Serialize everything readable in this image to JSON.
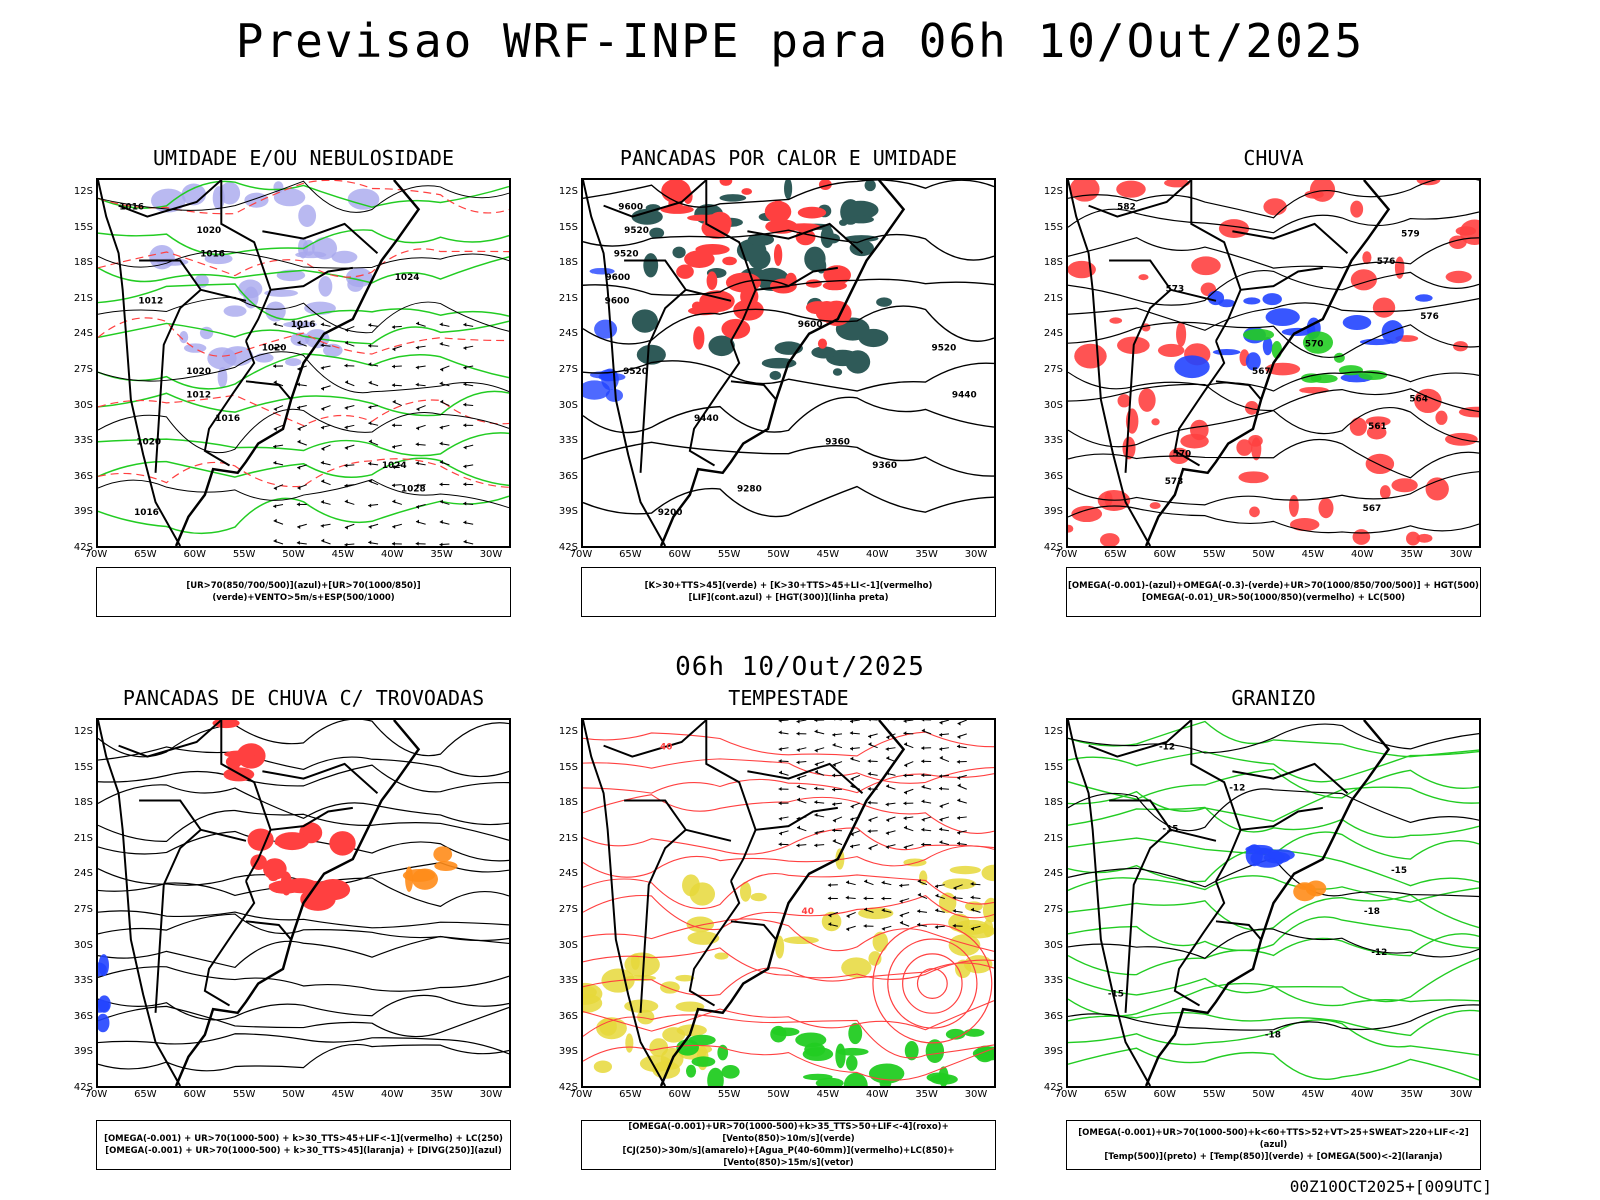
{
  "title": "Previsao WRF-INPE  para 06h 10/Out/2025",
  "mid_title": "06h 10/Out/2025",
  "footer": "00Z10OCT2025+[009UTC]",
  "axes": {
    "lat_ticks": [
      "12S",
      "15S",
      "18S",
      "21S",
      "24S",
      "27S",
      "30S",
      "33S",
      "36S",
      "39S",
      "42S"
    ],
    "lon_ticks": [
      "70W",
      "65W",
      "60W",
      "55W",
      "50W",
      "45W",
      "40W",
      "35W",
      "30W"
    ]
  },
  "colors": {
    "red": "#ff4040",
    "green": "#22cc22",
    "blue": "#2244ff",
    "lavender": "#a8a8ee",
    "darkteal": "#2f5a58",
    "yellow": "#e6d83a",
    "orange": "#ff8c1a"
  },
  "panels": [
    {
      "title": "UMIDADE E/OU NEBULOSIDADE",
      "legend": [
        "[UR>70(850/700/500)](azul)+[UR>70(1000/850)](verde)+VENTO>5m/s+ESP(500/1000)"
      ],
      "contour_labels": [
        "1016",
        "1020",
        "1016",
        "1024",
        "1012",
        "1016",
        "1020",
        "1020",
        "1012",
        "1016",
        "1020",
        "1024",
        "1028",
        "1016"
      ]
    },
    {
      "title": "PANCADAS POR CALOR E UMIDADE",
      "legend": [
        "[K>30+TTS>45](verde) + [K>30+TTS>45+LI<-1](vermelho)",
        "[LIF](cont.azul) + [HGT(300)](linha preta)"
      ],
      "contour_labels": [
        "9600",
        "9520",
        "9520",
        "9600",
        "9600",
        "9600",
        "9520",
        "9520",
        "9440",
        "9440",
        "9360",
        "9360",
        "9280",
        "9200"
      ]
    },
    {
      "title": "CHUVA",
      "legend": [
        "[OMEGA(-0.001)-(azul)+OMEGA(-0.3)-(verde)+UR>70(1000/850/700/500)] + HGT(500)",
        "[OMEGA(-0.01)_UR>50(1000/850)(vermelho) + LC(500)"
      ],
      "contour_labels": [
        "582",
        "579",
        "576",
        "573",
        "576",
        "570",
        "567",
        "564",
        "561",
        "570",
        "573",
        "567"
      ]
    },
    {
      "title": "PANCADAS DE CHUVA C/ TROVOADAS",
      "legend": [
        "[OMEGA(-0.001) + UR>70(1000-500) + k>30_TTS>45+LIF<-1](vermelho) + LC(250)",
        "[OMEGA(-0.001) + UR>70(1000-500) + k>30_TTS>45](laranja) + [DIVG(250)](azul)"
      ],
      "contour_labels": []
    },
    {
      "title": "TEMPESTADE",
      "legend": [
        "[OMEGA(-0.001)+UR>70(1000-500)+k>35_TTS>50+LIF<-4](roxo)+[Vento(850)>10m/s](verde)",
        "[CJ(250)>30m/s](amarelo)+[Agua_P(40-60mm)](vermelho)+LC(850)+[Vento(850)>15m/s](vetor)"
      ],
      "contour_labels": [
        "40",
        "40"
      ]
    },
    {
      "title": "GRANIZO",
      "legend": [
        "[OMEGA(-0.001)+UR>70(1000-500)+k<60+TTS>52+VT>25+SWEAT>220+LIF<-2](azul)",
        "[Temp(500)](preto) + [Temp(850)](verde) + [OMEGA(500)<-2](laranja)"
      ],
      "contour_labels": [
        "-12",
        "-12",
        "-15",
        "-15",
        "-18",
        "-12",
        "-15",
        "-18"
      ]
    }
  ]
}
